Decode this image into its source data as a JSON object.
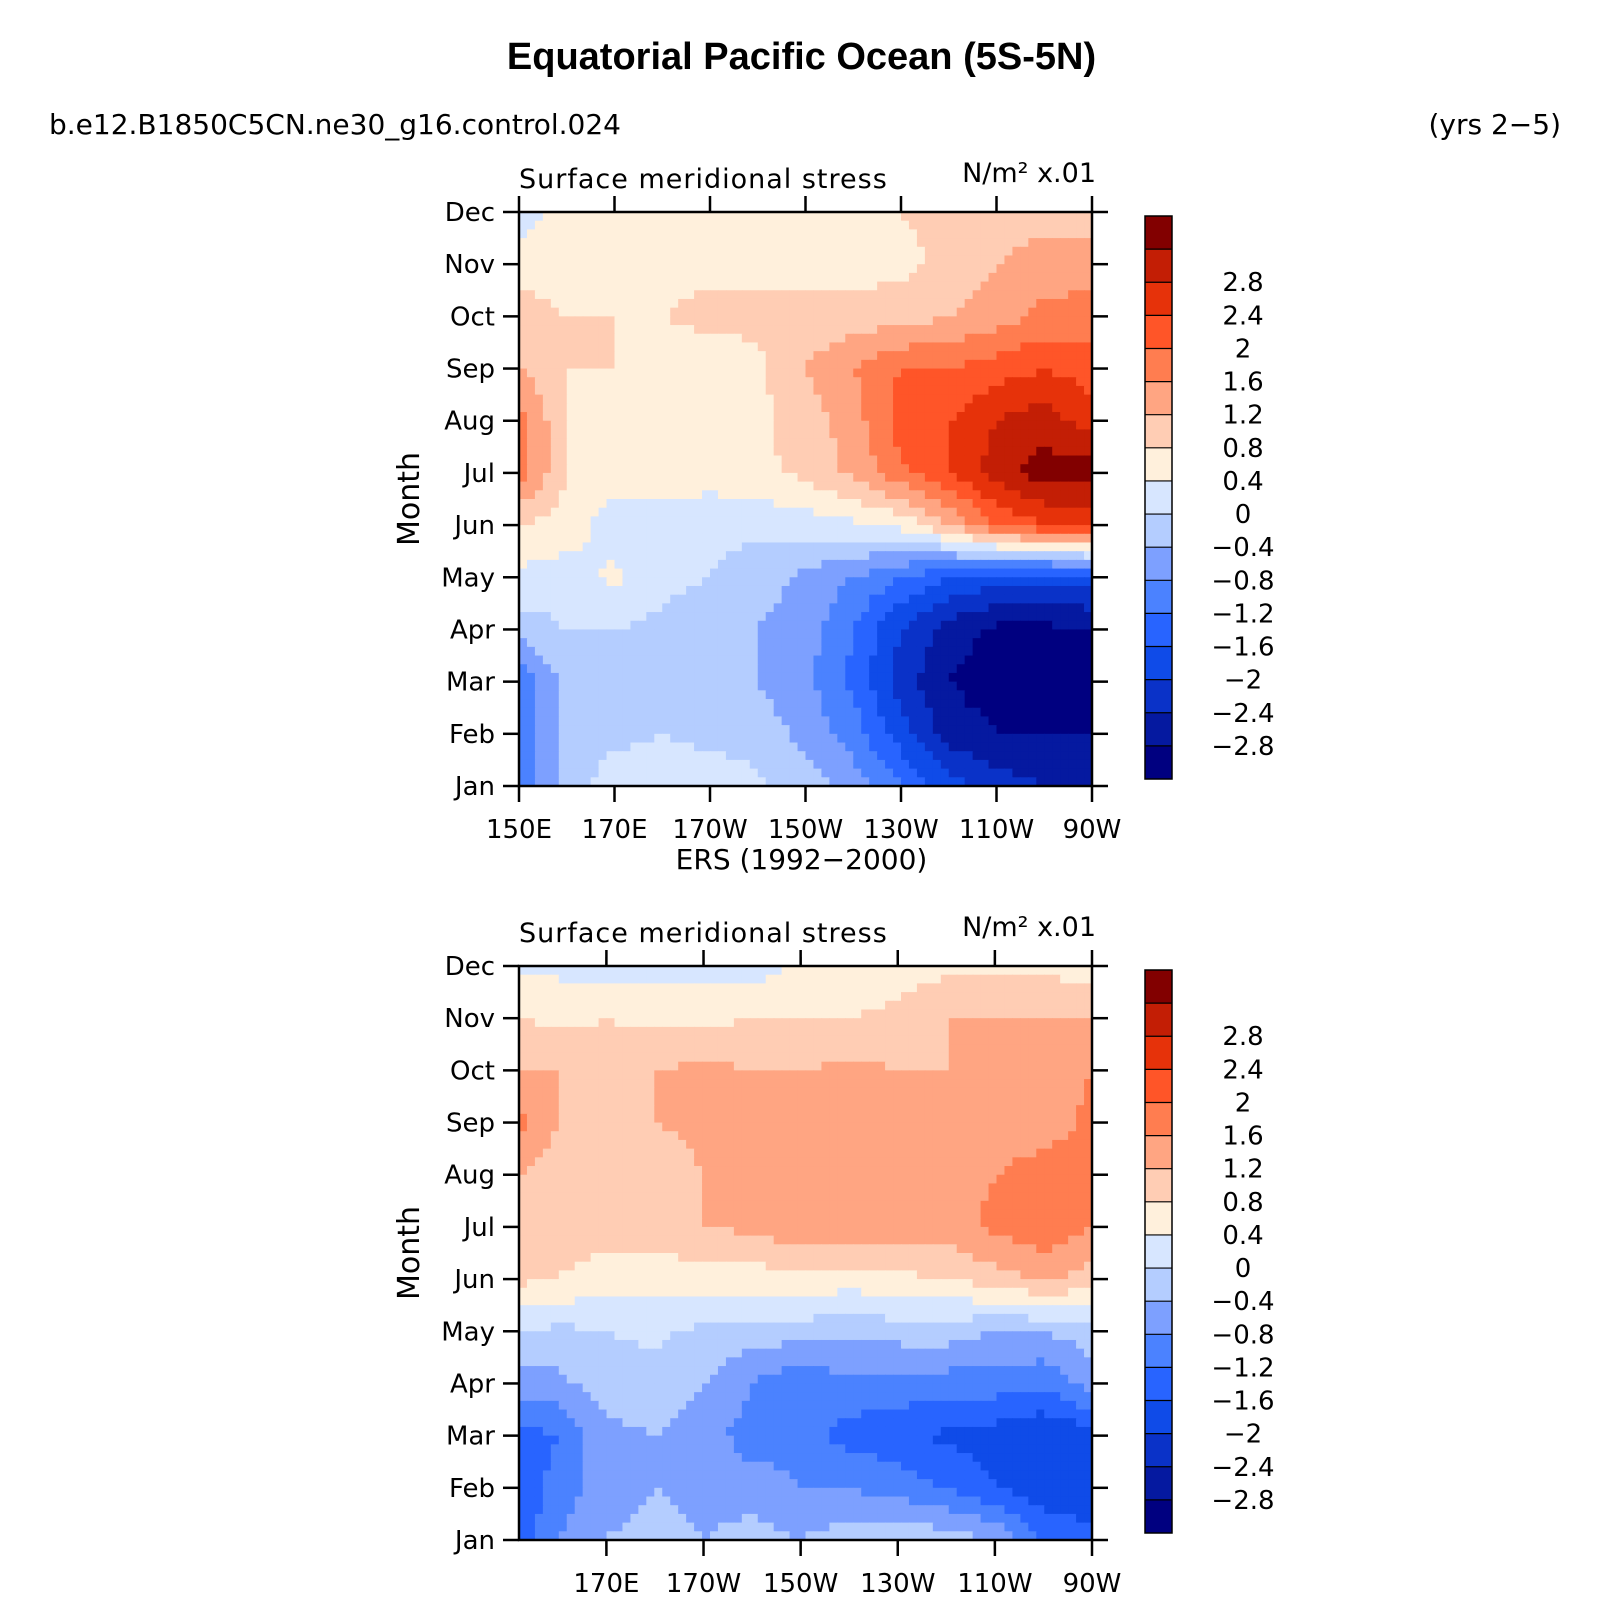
{
  "title": "Equatorial Pacific Ocean (5S-5N)",
  "case_name": "b.e12.B1850C5CN.ne30_g16.control.024",
  "years_label": "(yrs 2−5)",
  "panel2_heading": "ERS (1992−2000)",
  "colorbar": {
    "colors": [
      "#000080",
      "#0519a0",
      "#0a32c8",
      "#0f4be8",
      "#2864ff",
      "#4b82ff",
      "#7da0ff",
      "#b4cdff",
      "#d7e6ff",
      "#fff0dc",
      "#ffcdb4",
      "#ffa582",
      "#ff7d50",
      "#ff5528",
      "#e6320a",
      "#c31e05",
      "#820000"
    ],
    "labels": [
      "−2.8",
      "−2.4",
      "−2",
      "−1.6",
      "−1.2",
      "−0.8",
      "−0.4",
      "0",
      "0.4",
      "0.8",
      "1.2",
      "1.6",
      "2",
      "2.4",
      "2.8"
    ]
  },
  "chart_data": [
    {
      "type": "heatmap",
      "title": "",
      "left_string": "Surface meridional stress",
      "right_string": "N/m² x.01",
      "xlabel": "",
      "ylabel": "Month",
      "x_tick_labels": [
        "150E",
        "170E",
        "170W",
        "150W",
        "130W",
        "110W",
        "90W"
      ],
      "y_tick_labels": [
        "Jan",
        "Feb",
        "Mar",
        "Apr",
        "May",
        "Jun",
        "Jul",
        "Aug",
        "Sep",
        "Oct",
        "Nov",
        "Dec"
      ],
      "x_tick_lon": [
        150,
        170,
        190,
        210,
        230,
        250,
        270
      ],
      "xlim": [
        150,
        270
      ],
      "lon": [
        150,
        160,
        170,
        180,
        190,
        200,
        210,
        220,
        230,
        240,
        250,
        260,
        270
      ],
      "months": [
        "Jan",
        "Feb",
        "Mar",
        "Apr",
        "May",
        "Jun",
        "Jul",
        "Aug",
        "Sep",
        "Oct",
        "Nov",
        "Dec"
      ],
      "values": [
        [
          -1.6,
          -0.6,
          -0.2,
          -0.2,
          -0.2,
          -0.3,
          -0.6,
          -1.0,
          -1.6,
          -2.2,
          -2.6,
          -2.8,
          -2.8
        ],
        [
          -1.6,
          -0.6,
          -0.5,
          -0.4,
          -0.5,
          -0.6,
          -0.9,
          -1.4,
          -2.2,
          -3.0,
          -3.2,
          -3.2,
          -3.2
        ],
        [
          -1.6,
          -0.6,
          -0.6,
          -0.6,
          -0.6,
          -0.8,
          -1.1,
          -1.7,
          -2.6,
          -3.2,
          -3.4,
          -3.4,
          -3.4
        ],
        [
          -0.6,
          -0.4,
          -0.4,
          -0.5,
          -0.6,
          -0.8,
          -1.0,
          -1.6,
          -2.4,
          -3.0,
          -3.3,
          -3.3,
          -3.2
        ],
        [
          -0.1,
          -0.2,
          0.1,
          -0.3,
          -0.4,
          -0.6,
          -0.9,
          -1.2,
          -1.6,
          -2.0,
          -2.2,
          -2.3,
          -2.2
        ],
        [
          0.4,
          0.2,
          -0.2,
          -0.2,
          -0.3,
          -0.3,
          -0.2,
          -0.1,
          0.1,
          0.8,
          1.6,
          2.0,
          2.2
        ],
        [
          1.4,
          0.4,
          0.2,
          0.2,
          0.2,
          0.3,
          0.5,
          0.9,
          1.5,
          2.0,
          2.6,
          3.0,
          3.0
        ],
        [
          1.4,
          0.4,
          0.2,
          0.2,
          0.2,
          0.3,
          0.6,
          1.0,
          1.8,
          2.0,
          2.4,
          2.6,
          2.2
        ],
        [
          0.8,
          0.4,
          0.4,
          0.2,
          0.2,
          0.3,
          0.8,
          1.2,
          1.6,
          1.6,
          1.8,
          2.0,
          1.8
        ],
        [
          0.6,
          0.4,
          0.4,
          0.4,
          0.5,
          0.5,
          0.5,
          0.6,
          0.6,
          0.8,
          1.0,
          1.3,
          1.4
        ],
        [
          0.2,
          0.2,
          0.3,
          0.3,
          0.3,
          0.3,
          0.3,
          0.2,
          0.3,
          0.5,
          0.8,
          1.0,
          1.0
        ],
        [
          -0.2,
          0.2,
          0.2,
          0.2,
          0.2,
          0.3,
          0.3,
          0.3,
          0.4,
          0.5,
          0.6,
          0.6,
          0.6
        ]
      ]
    },
    {
      "type": "heatmap",
      "title": "",
      "left_string": "Surface meridional stress",
      "right_string": "N/m² x.01",
      "xlabel": "",
      "ylabel": "Month",
      "x_tick_labels": [
        "170E",
        "170W",
        "150W",
        "130W",
        "110W",
        "90W"
      ],
      "y_tick_labels": [
        "Jan",
        "Feb",
        "Mar",
        "Apr",
        "May",
        "Jun",
        "Jul",
        "Aug",
        "Sep",
        "Oct",
        "Nov",
        "Dec"
      ],
      "x_tick_lon": [
        170,
        190,
        210,
        230,
        250,
        270
      ],
      "xlim": [
        152,
        270
      ],
      "lon": [
        152,
        160,
        170,
        180,
        190,
        200,
        210,
        220,
        230,
        240,
        250,
        260,
        270
      ],
      "months": [
        "Jan",
        "Feb",
        "Mar",
        "Apr",
        "May",
        "Jun",
        "Jul",
        "Aug",
        "Sep",
        "Oct",
        "Nov",
        "Dec"
      ],
      "values": [
        [
          -1.8,
          -1.2,
          -0.8,
          -0.6,
          -0.8,
          -0.6,
          -0.8,
          -0.6,
          -0.4,
          -0.6,
          -0.8,
          -1.6,
          -1.8
        ],
        [
          -2.0,
          -1.4,
          -1.0,
          -0.8,
          -1.0,
          -1.0,
          -1.2,
          -1.2,
          -1.4,
          -1.6,
          -2.0,
          -2.3,
          -2.4
        ],
        [
          -1.8,
          -1.6,
          -0.9,
          -0.8,
          -1.0,
          -1.4,
          -1.3,
          -1.8,
          -1.8,
          -2.1,
          -2.2,
          -2.4,
          -2.2
        ],
        [
          -1.0,
          -0.9,
          -0.6,
          -0.6,
          -0.8,
          -1.2,
          -1.5,
          -1.3,
          -1.4,
          -1.4,
          -1.4,
          -1.5,
          -1.0
        ],
        [
          -0.4,
          -0.5,
          -0.4,
          -0.3,
          -0.5,
          -0.6,
          -0.6,
          -0.7,
          -0.6,
          -0.6,
          -0.8,
          -0.8,
          -0.6
        ],
        [
          0.5,
          0.4,
          0.2,
          0.2,
          0.2,
          0.2,
          0.3,
          0.2,
          0.3,
          0.4,
          0.6,
          0.9,
          0.6
        ],
        [
          0.8,
          0.6,
          0.6,
          0.6,
          0.8,
          0.9,
          1.1,
          1.0,
          1.0,
          1.0,
          1.3,
          1.5,
          1.2
        ],
        [
          0.8,
          0.6,
          0.6,
          0.6,
          0.8,
          1.0,
          1.0,
          1.0,
          1.0,
          1.0,
          1.2,
          1.4,
          1.3
        ],
        [
          1.3,
          0.8,
          0.8,
          0.8,
          0.9,
          1.0,
          0.9,
          0.9,
          1.0,
          1.0,
          0.9,
          1.0,
          1.3
        ],
        [
          0.8,
          0.8,
          0.6,
          0.8,
          0.9,
          0.8,
          0.8,
          0.9,
          0.8,
          0.8,
          0.9,
          0.9,
          1.2
        ],
        [
          0.4,
          0.3,
          0.4,
          0.3,
          0.3,
          0.4,
          0.4,
          0.4,
          0.5,
          0.8,
          0.8,
          0.8,
          0.8
        ],
        [
          -0.1,
          -0.1,
          -0.2,
          -0.2,
          -0.1,
          -0.2,
          0.1,
          0.2,
          0.2,
          0.3,
          0.3,
          0.3,
          0.2
        ]
      ]
    }
  ]
}
